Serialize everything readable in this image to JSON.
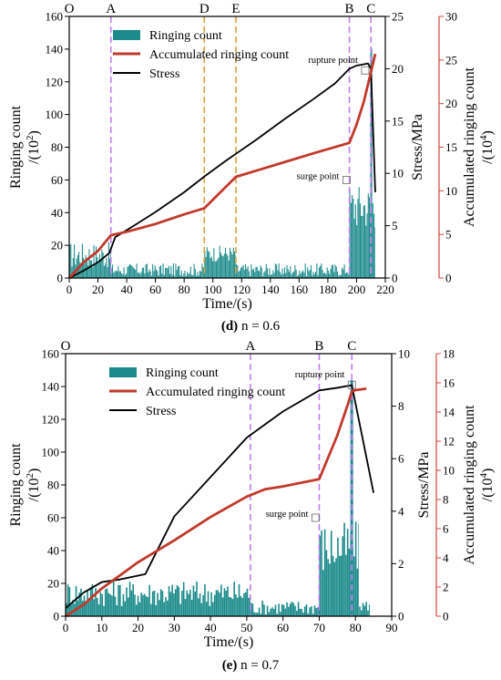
{
  "chart_data": [
    {
      "type": "bar+line",
      "caption_letter": "(d)",
      "caption_rest": " n = 0.6",
      "xlabel": "Time/(s)",
      "ylabel_left_1": "Ringing count",
      "ylabel_left_2": "/(10",
      "ylabel_left_sup": "2",
      "ylabel_left_3": ")",
      "ylabel_right1": "Stress/MPa",
      "ylabel_right2_1": "Accumulated ringing count",
      "ylabel_right2_2": "/(10",
      "ylabel_right2_sup": "4",
      "ylabel_right2_3": ")",
      "xlim": [
        0,
        220
      ],
      "xticks": [
        0,
        20,
        40,
        60,
        80,
        100,
        120,
        140,
        160,
        180,
        200,
        220
      ],
      "ylim_left": [
        0,
        160
      ],
      "yticks_left": [
        0,
        20,
        40,
        60,
        80,
        100,
        120,
        140,
        160
      ],
      "ylim_right1": [
        0,
        25
      ],
      "yticks_right1": [
        0,
        5,
        10,
        15,
        20,
        25
      ],
      "ylim_right2": [
        0,
        30
      ],
      "yticks_right2": [
        0,
        5,
        10,
        15,
        20,
        25,
        30
      ],
      "legend": [
        "Ringing count",
        "Accumulated ringing count",
        "Stress"
      ],
      "phase_lines": [
        {
          "label": "O",
          "x": 0,
          "color": "#c9a0f0",
          "style": "none"
        },
        {
          "label": "A",
          "x": 29,
          "color": "#c17ff0",
          "style": "dash"
        },
        {
          "label": "D",
          "x": 94,
          "color": "#d9a040",
          "style": "dash"
        },
        {
          "label": "E",
          "x": 116,
          "color": "#d9a040",
          "style": "dash"
        },
        {
          "label": "B",
          "x": 195,
          "color": "#c17ff0",
          "style": "dash"
        },
        {
          "label": "C",
          "x": 210,
          "color": "#c17ff0",
          "style": "dash"
        }
      ],
      "annotations": [
        {
          "text": "rupture point",
          "x": 206,
          "y_left": 127
        },
        {
          "text": "surge point",
          "x": 193,
          "y_left": 60
        }
      ],
      "series": [
        {
          "name": "Stress",
          "axis": "right1",
          "color": "#000000",
          "x": [
            0,
            10,
            20,
            28,
            32,
            45,
            60,
            80,
            95,
            110,
            130,
            150,
            170,
            185,
            195,
            200,
            208,
            210,
            213
          ],
          "y": [
            0,
            0.7,
            1.5,
            2.4,
            3.9,
            5.0,
            6.3,
            8.2,
            9.8,
            11.3,
            13.2,
            15.2,
            17.1,
            18.6,
            20.0,
            20.3,
            20.5,
            20.0,
            8.2
          ]
        },
        {
          "name": "Accumulated ringing count",
          "axis": "right2",
          "color": "#c0392b",
          "x": [
            0,
            10,
            20,
            29,
            40,
            60,
            80,
            94,
            116,
            130,
            150,
            170,
            195,
            200,
            205,
            210,
            213
          ],
          "y": [
            0,
            1.8,
            3.1,
            4.9,
            5.3,
            6.2,
            7.3,
            8.0,
            11.6,
            12.3,
            13.3,
            14.3,
            15.5,
            17.6,
            20.2,
            23.6,
            25.7
          ]
        },
        {
          "name": "Ringing count",
          "axis": "left",
          "color": "#1a8a8a",
          "bars": [
            {
              "x0": 0,
              "x1": 29,
              "min": 6,
              "max": 22,
              "step": 0.8
            },
            {
              "x0": 29,
              "x1": 94,
              "min": 1,
              "max": 9,
              "step": 0.8
            },
            {
              "x0": 94,
              "x1": 116,
              "min": 10,
              "max": 20,
              "step": 0.8
            },
            {
              "x0": 116,
              "x1": 195,
              "min": 1,
              "max": 9,
              "step": 0.8
            },
            {
              "x0": 195,
              "x1": 213,
              "min": 30,
              "max": 58,
              "step": 0.8
            },
            {
              "x0": 209.5,
              "x1": 210.8,
              "min": 140,
              "max": 141,
              "step": 1
            }
          ]
        }
      ]
    },
    {
      "type": "bar+line",
      "caption_letter": "(e)",
      "caption_rest": " n = 0.7",
      "xlabel": "Time/(s)",
      "ylabel_left_1": "Ringing count",
      "ylabel_left_2": "/(10",
      "ylabel_left_sup": "2",
      "ylabel_left_3": ")",
      "ylabel_right1": "Stress/MPa",
      "ylabel_right2_1": "Accumulated ringing count",
      "ylabel_right2_2": "/(10",
      "ylabel_right2_sup": "4",
      "ylabel_right2_3": ")",
      "xlim": [
        0,
        90
      ],
      "xticks": [
        0,
        10,
        20,
        30,
        40,
        50,
        60,
        70,
        80,
        90
      ],
      "ylim_left": [
        0,
        160
      ],
      "yticks_left": [
        0,
        20,
        40,
        60,
        80,
        100,
        120,
        140,
        160
      ],
      "ylim_right1": [
        0,
        10
      ],
      "yticks_right1": [
        0,
        2,
        4,
        6,
        8,
        10
      ],
      "ylim_right2": [
        0,
        18
      ],
      "yticks_right2": [
        0,
        2,
        4,
        6,
        8,
        10,
        12,
        14,
        16,
        18
      ],
      "legend": [
        "Ringing count",
        "Accumulated ringing count",
        "Stress"
      ],
      "phase_lines": [
        {
          "label": "O",
          "x": 0,
          "color": "#c9a0f0",
          "style": "none"
        },
        {
          "label": "A",
          "x": 51,
          "color": "#c17ff0",
          "style": "dash"
        },
        {
          "label": "B",
          "x": 70,
          "color": "#c17ff0",
          "style": "dash"
        },
        {
          "label": "C",
          "x": 79,
          "color": "#c17ff0",
          "style": "dash"
        }
      ],
      "annotations": [
        {
          "text": "rupture point",
          "x": 79,
          "y_left": 141
        },
        {
          "text": "surge point",
          "x": 69,
          "y_left": 60
        }
      ],
      "series": [
        {
          "name": "Stress",
          "axis": "right1",
          "color": "#000000",
          "x": [
            0,
            5,
            10,
            15,
            22,
            30,
            40,
            50,
            60,
            70,
            75,
            79,
            85
          ],
          "y": [
            0.3,
            0.9,
            1.3,
            1.4,
            1.6,
            3.8,
            5.3,
            6.8,
            7.8,
            8.6,
            8.7,
            8.8,
            4.7
          ]
        },
        {
          "name": "Accumulated ringing count",
          "axis": "right2",
          "color": "#c0392b",
          "x": [
            0,
            5,
            10,
            15,
            20,
            30,
            40,
            50,
            55,
            60,
            70,
            72,
            75,
            78,
            79,
            80,
            83
          ],
          "y": [
            0,
            0.8,
            1.9,
            2.8,
            3.7,
            5.2,
            6.8,
            8.2,
            8.7,
            8.9,
            9.4,
            10.6,
            12.4,
            14.6,
            15.4,
            15.5,
            15.6
          ]
        },
        {
          "name": "Ringing count",
          "axis": "left",
          "color": "#1a8a8a",
          "bars": [
            {
              "x0": 0,
              "x1": 51,
              "min": 6,
              "max": 22,
              "step": 0.45
            },
            {
              "x0": 51,
              "x1": 70,
              "min": 1,
              "max": 10,
              "step": 0.45
            },
            {
              "x0": 70,
              "x1": 81,
              "min": 25,
              "max": 58,
              "step": 0.45
            },
            {
              "x0": 81,
              "x1": 84,
              "min": 3,
              "max": 10,
              "step": 0.45
            },
            {
              "x0": 78.6,
              "x1": 79.4,
              "min": 143,
              "max": 144,
              "step": 1
            }
          ]
        }
      ]
    }
  ]
}
